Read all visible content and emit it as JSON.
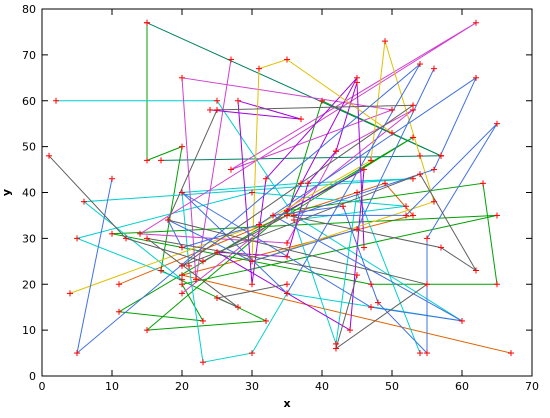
{
  "chart_data": {
    "type": "line",
    "title": "",
    "xlabel": "x",
    "ylabel": "y",
    "xlim": [
      0,
      70
    ],
    "ylim": [
      0,
      80
    ],
    "x_ticks": [
      0,
      10,
      20,
      30,
      40,
      50,
      60,
      70
    ],
    "y_ticks": [
      0,
      10,
      20,
      30,
      40,
      50,
      60,
      70,
      80
    ],
    "x_tick_labels": [
      "0",
      "10",
      "20",
      "30",
      "40",
      "50",
      "60",
      "70"
    ],
    "y_tick_labels": [
      "0",
      "10",
      "20",
      "30",
      "40",
      "50",
      "60",
      "70",
      "80"
    ],
    "grid": false,
    "legend": "none",
    "marker_color": "#ff0000",
    "series": [
      {
        "color": "#e06000",
        "points": [
          [
            11,
            20
          ],
          [
            35,
            35
          ],
          [
            49,
            42
          ],
          [
            53,
            35
          ],
          [
            20,
            22
          ],
          [
            67,
            5
          ]
        ]
      },
      {
        "color": "#00a000",
        "points": [
          [
            15,
            77
          ],
          [
            15,
            47
          ],
          [
            20,
            50
          ],
          [
            17,
            23
          ],
          [
            32,
            12
          ],
          [
            15,
            10
          ],
          [
            35,
            36
          ],
          [
            63,
            42
          ],
          [
            65,
            20
          ],
          [
            47,
            20
          ],
          [
            10,
            31
          ],
          [
            65,
            35
          ],
          [
            20,
            20
          ],
          [
            23,
            12
          ],
          [
            11,
            14
          ],
          [
            53,
            52
          ],
          [
            35,
            35
          ],
          [
            40,
            60
          ],
          [
            57,
            48
          ]
        ]
      },
      {
        "color": "#008060",
        "points": [
          [
            15,
            77
          ],
          [
            57,
            48
          ],
          [
            17,
            47
          ],
          [
            57,
            48
          ]
        ]
      },
      {
        "color": "#00d0d0",
        "points": [
          [
            2,
            60
          ],
          [
            25,
            60
          ],
          [
            36,
            35
          ],
          [
            60,
            12
          ],
          [
            35,
            18
          ],
          [
            30,
            5
          ],
          [
            23,
            3
          ],
          [
            21,
            24
          ],
          [
            20,
            40
          ],
          [
            37,
            42
          ],
          [
            53,
            43
          ],
          [
            6,
            38
          ],
          [
            20,
            21
          ],
          [
            5,
            30
          ],
          [
            30,
            40
          ],
          [
            52,
            37
          ],
          [
            36,
            34
          ],
          [
            42,
            7
          ],
          [
            45,
            40
          ],
          [
            54,
            5
          ]
        ]
      },
      {
        "color": "#d040d0",
        "points": [
          [
            27,
            69
          ],
          [
            22,
            21
          ],
          [
            20,
            65
          ],
          [
            50,
            58
          ],
          [
            27,
            45
          ],
          [
            62,
            77
          ],
          [
            14,
            31
          ],
          [
            35,
            29
          ],
          [
            42,
            49
          ],
          [
            53,
            58
          ],
          [
            20,
            18
          ]
        ]
      },
      {
        "color": "#a000e0",
        "points": [
          [
            24,
            58
          ],
          [
            37,
            56
          ],
          [
            28,
            60
          ],
          [
            30,
            20
          ],
          [
            32,
            43
          ],
          [
            45,
            65
          ],
          [
            35,
            36
          ],
          [
            46,
            45
          ],
          [
            44,
            10
          ],
          [
            25,
            27
          ],
          [
            35,
            26
          ],
          [
            38,
            42
          ],
          [
            42,
            49
          ],
          [
            45,
            64
          ],
          [
            46,
            28
          ]
        ]
      },
      {
        "color": "#e0c000",
        "points": [
          [
            4,
            18
          ],
          [
            31,
            33
          ],
          [
            47,
            47
          ],
          [
            49,
            73
          ],
          [
            54,
            48
          ],
          [
            56,
            38
          ],
          [
            30,
            25
          ],
          [
            31,
            67
          ],
          [
            35,
            69
          ],
          [
            50,
            53
          ]
        ]
      },
      {
        "color": "#4070e0",
        "points": [
          [
            10,
            43
          ],
          [
            5,
            5
          ],
          [
            54,
            68
          ],
          [
            35,
            18
          ],
          [
            20,
            40
          ],
          [
            47,
            15
          ],
          [
            60,
            12
          ],
          [
            33,
            35
          ],
          [
            43,
            37
          ],
          [
            48,
            16
          ],
          [
            55,
            5
          ],
          [
            55,
            30
          ],
          [
            65,
            55
          ],
          [
            52,
            35
          ],
          [
            36,
            35
          ],
          [
            56,
            45
          ],
          [
            62,
            65
          ],
          [
            31,
            33
          ],
          [
            20,
            28
          ],
          [
            18,
            34
          ],
          [
            30,
            25
          ],
          [
            45,
            32
          ],
          [
            56,
            67
          ]
        ]
      },
      {
        "color": "#606060",
        "points": [
          [
            1,
            48
          ],
          [
            12,
            30
          ],
          [
            23,
            25
          ],
          [
            35,
            35
          ],
          [
            57,
            28
          ],
          [
            62,
            23
          ],
          [
            54,
            44
          ],
          [
            20,
            24
          ],
          [
            53,
            59
          ],
          [
            25,
            58
          ],
          [
            18,
            34
          ],
          [
            55,
            20
          ],
          [
            42,
            6
          ],
          [
            45,
            22
          ],
          [
            15,
            30
          ],
          [
            28,
            15
          ],
          [
            25,
            17
          ],
          [
            35,
            20
          ]
        ]
      }
    ]
  }
}
